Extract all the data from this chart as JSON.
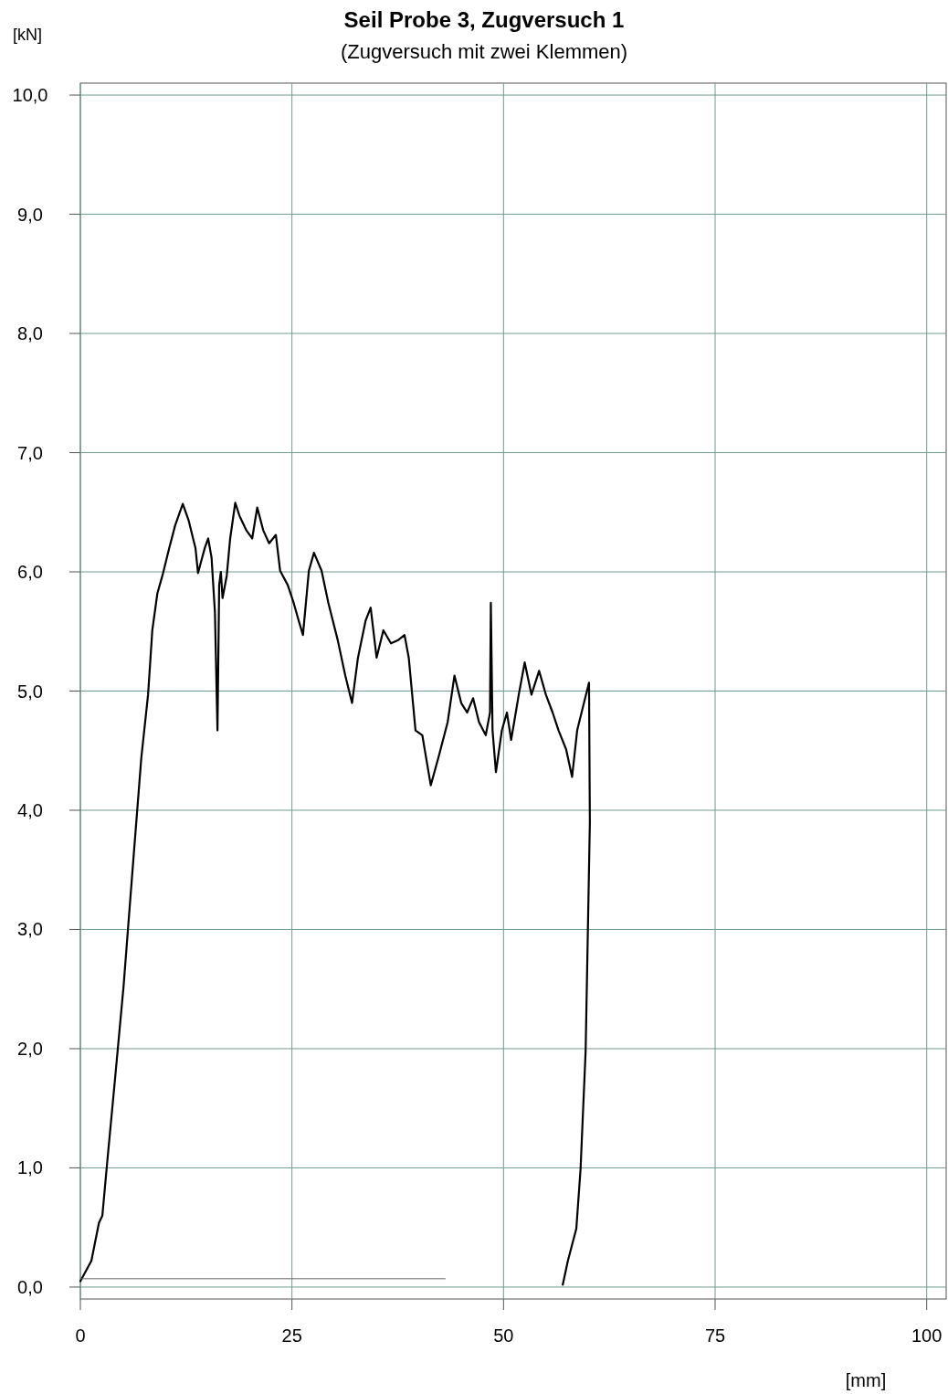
{
  "chart_data": {
    "type": "line",
    "title": "Seil Probe 3, Zugversuch 1",
    "subtitle": "(Zugversuch mit zwei Klemmen)",
    "xlabel": "[mm]",
    "ylabel": "[kN]",
    "xlim": [
      0,
      102.3
    ],
    "ylim": [
      -0.1,
      10.1
    ],
    "xticks": [
      0,
      25,
      50,
      75,
      100
    ],
    "yticks": [
      {
        "value": 0,
        "label": "0,0"
      },
      {
        "value": 1,
        "label": "1,0"
      },
      {
        "value": 2,
        "label": "2,0"
      },
      {
        "value": 3,
        "label": "3,0"
      },
      {
        "value": 4,
        "label": "4,0"
      },
      {
        "value": 5,
        "label": "5,0"
      },
      {
        "value": 6,
        "label": "6,0"
      },
      {
        "value": 7,
        "label": "7,0"
      },
      {
        "value": 8,
        "label": "8,0"
      },
      {
        "value": 9,
        "label": "9,0"
      },
      {
        "value": 10,
        "label": "10,0"
      }
    ],
    "grid": true,
    "marker": "none",
    "line_style": "solid",
    "series": [
      {
        "color": "#000000",
        "x": [
          0,
          1.3,
          2.2,
          2.6,
          3.2,
          4.1,
          5.1,
          6.1,
          7.2,
          8.0,
          8.5,
          9.1,
          9.7,
          10.5,
          11.2,
          12.1,
          12.8,
          13.6,
          13.9,
          14.7,
          15.1,
          15.5,
          15.9,
          16.2,
          16.4,
          16.6,
          16.8,
          17.3,
          17.7,
          18.3,
          18.8,
          19.6,
          20.3,
          20.9,
          21.6,
          22.3,
          23.1,
          23.6,
          24.5,
          25.2,
          25.8,
          26.3,
          27.0,
          27.6,
          28.5,
          29.3,
          30.4,
          31.3,
          32.1,
          32.8,
          33.7,
          34.3,
          35.0,
          35.8,
          36.7,
          37.6,
          38.3,
          38.8,
          39.6,
          40.4,
          41.4,
          42.3,
          43.4,
          44.2,
          45.0,
          45.7,
          46.4,
          47.1,
          47.9,
          48.4,
          48.5,
          48.7,
          49.1,
          49.8,
          50.4,
          50.9,
          51.8,
          52.5,
          53.3,
          54.2,
          55.0,
          55.8,
          56.5,
          57.4,
          58.1,
          58.7,
          59.5,
          60.1,
          60.2,
          60.0,
          59.7,
          59.1,
          58.6,
          57.6,
          57.0
        ],
        "values": [
          0.05,
          0.22,
          0.54,
          0.6,
          1.07,
          1.75,
          2.52,
          3.44,
          4.44,
          4.97,
          5.51,
          5.82,
          5.97,
          6.2,
          6.39,
          6.57,
          6.43,
          6.2,
          5.99,
          6.2,
          6.28,
          6.12,
          5.66,
          4.67,
          5.89,
          6.0,
          5.78,
          5.97,
          6.28,
          6.58,
          6.47,
          6.35,
          6.28,
          6.54,
          6.35,
          6.24,
          6.31,
          6.01,
          5.89,
          5.74,
          5.59,
          5.47,
          6.01,
          6.16,
          6.01,
          5.74,
          5.43,
          5.13,
          4.9,
          5.28,
          5.59,
          5.7,
          5.28,
          5.51,
          5.4,
          5.43,
          5.47,
          5.28,
          4.67,
          4.63,
          4.21,
          4.44,
          4.74,
          5.13,
          4.9,
          4.82,
          4.94,
          4.74,
          4.63,
          4.82,
          5.74,
          4.67,
          4.32,
          4.67,
          4.82,
          4.59,
          4.97,
          5.24,
          4.97,
          5.17,
          4.97,
          4.82,
          4.67,
          4.51,
          4.28,
          4.67,
          4.9,
          5.07,
          3.9,
          3.13,
          1.98,
          0.99,
          0.49,
          0.22,
          0.02
        ]
      },
      {
        "color": "#666666",
        "x": [
          0,
          43.1
        ],
        "values": [
          0.07,
          0.07
        ]
      }
    ]
  }
}
